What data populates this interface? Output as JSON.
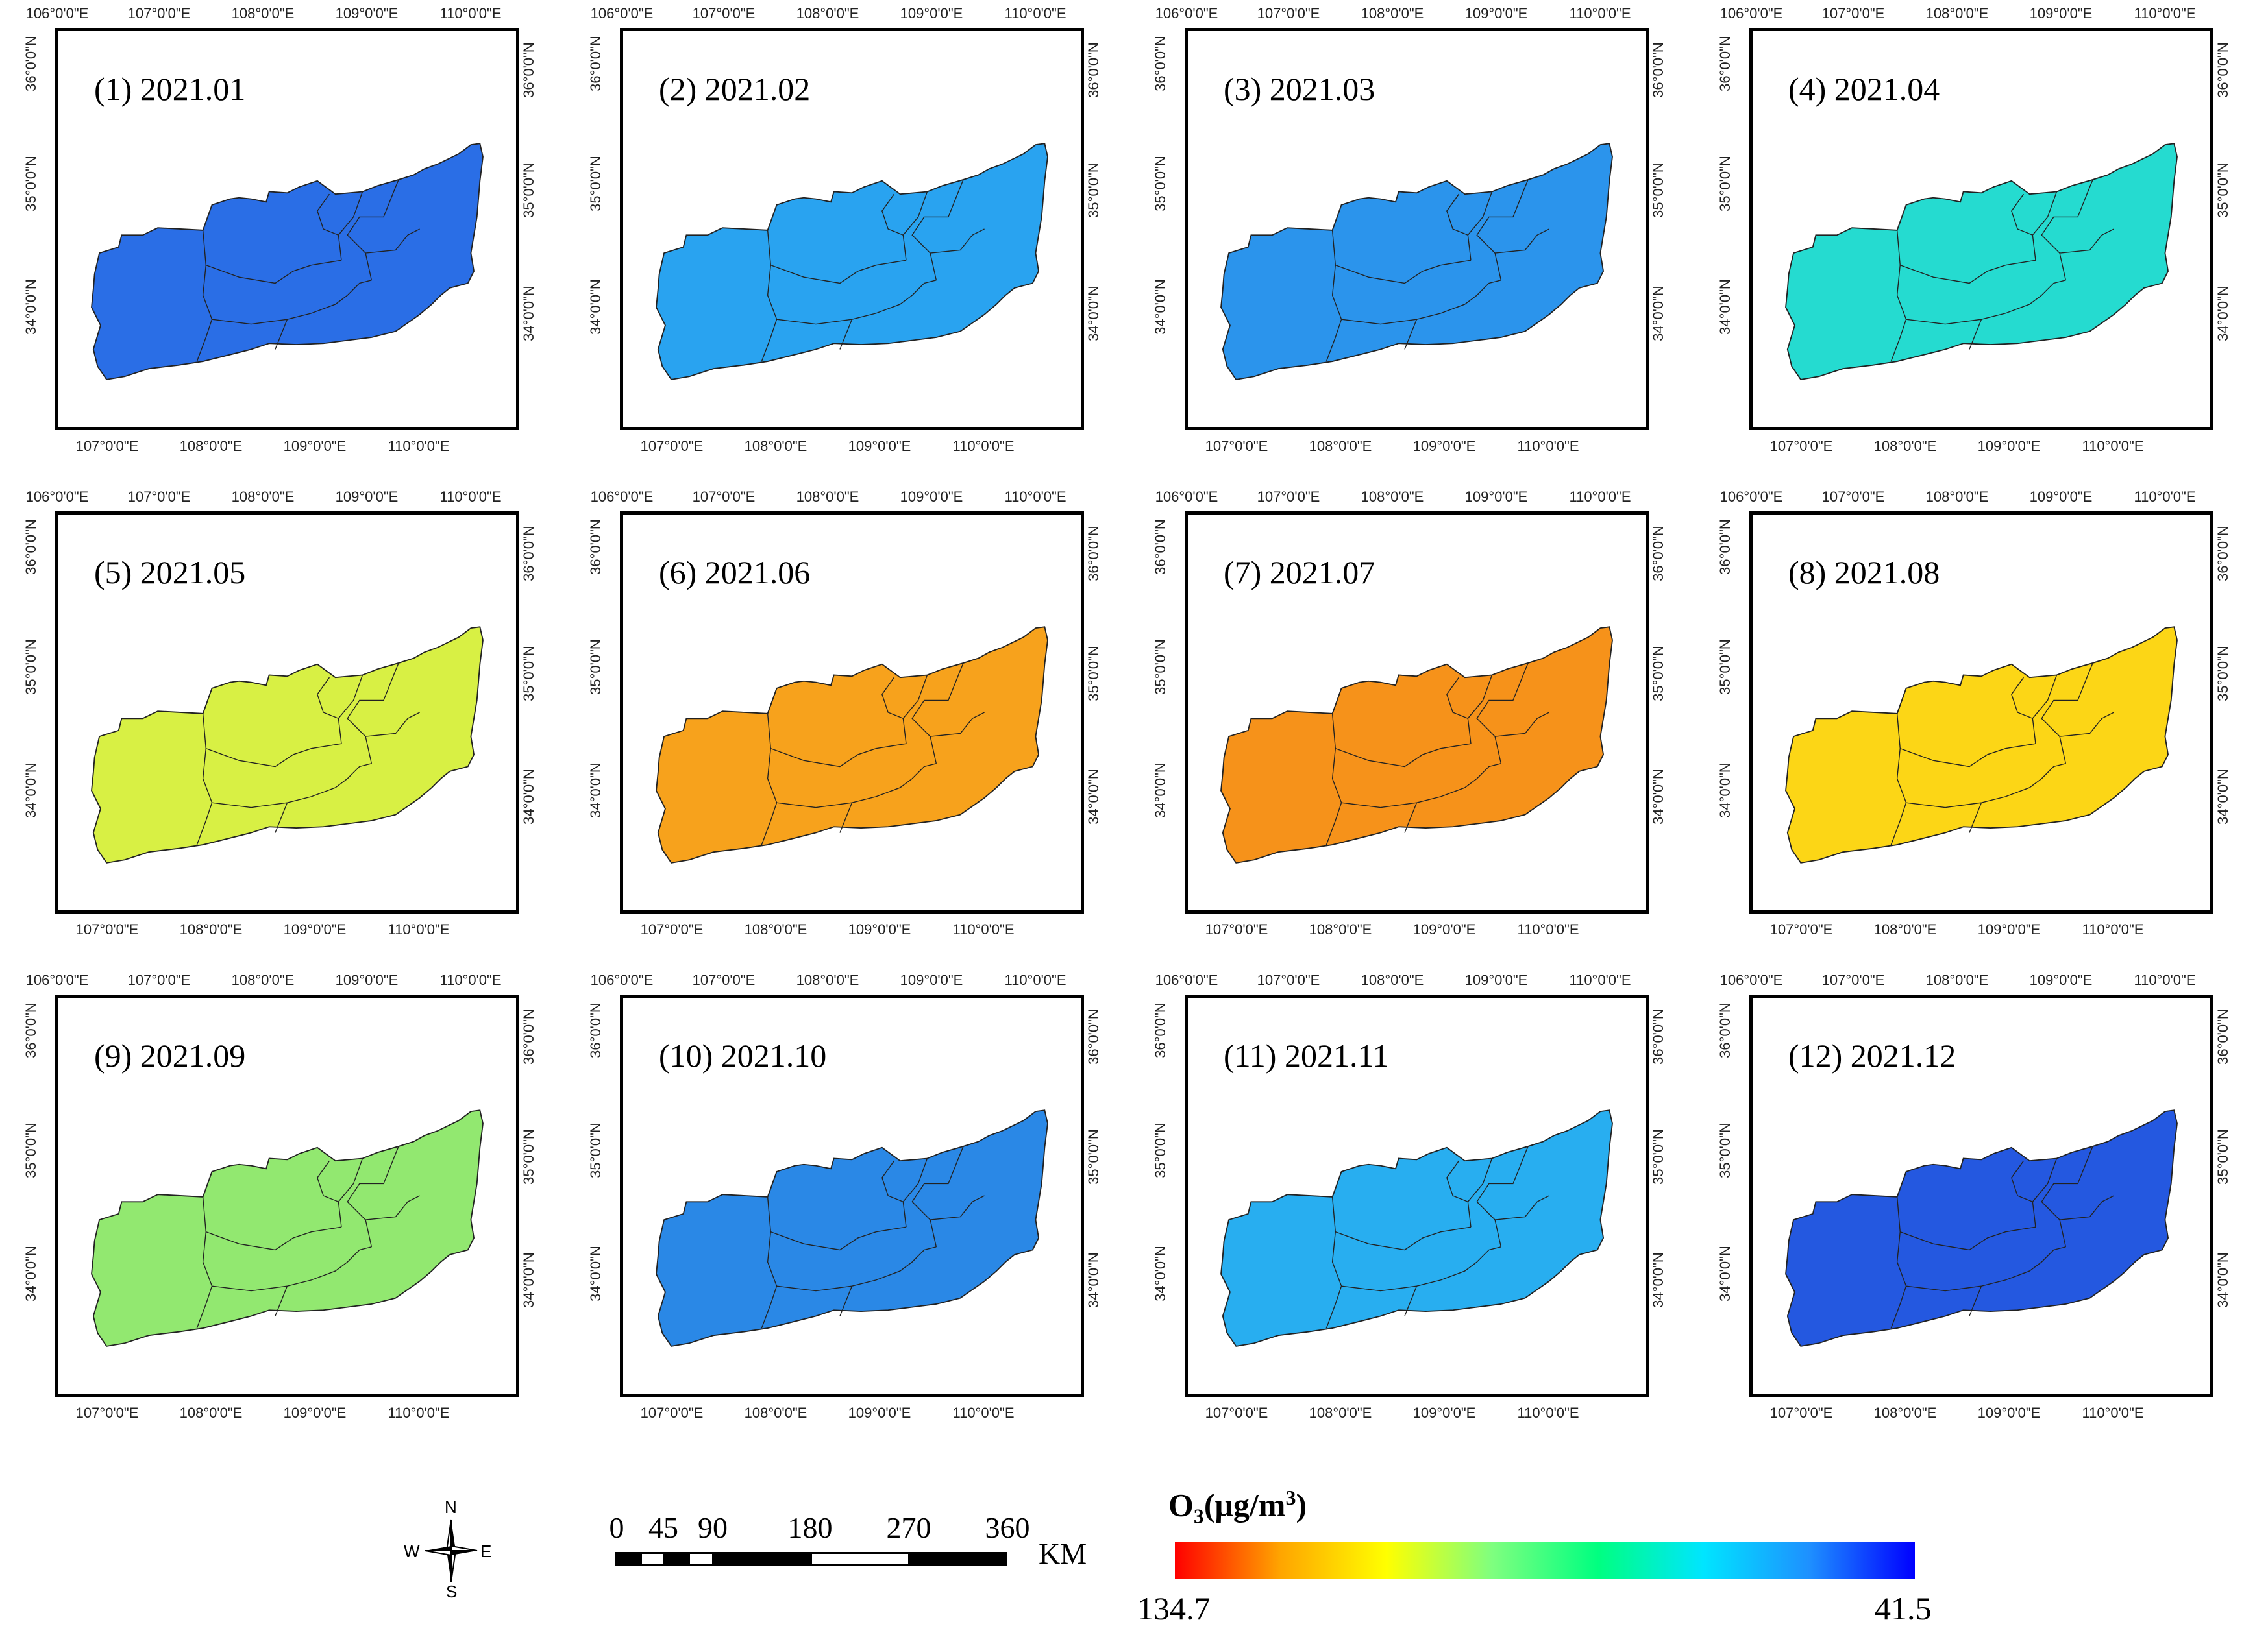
{
  "panels": [
    {
      "title": "(1) 2021.01",
      "fill": "#2a6ee6"
    },
    {
      "title": "(2) 2021.02",
      "fill": "#29a3f0"
    },
    {
      "title": "(3) 2021.03",
      "fill": "#2b94ec"
    },
    {
      "title": "(4) 2021.04",
      "fill": "#25dbd0"
    },
    {
      "title": "(5) 2021.05",
      "fill": "#d8f044"
    },
    {
      "title": "(6) 2021.06",
      "fill": "#f7a21c"
    },
    {
      "title": "(7) 2021.07",
      "fill": "#f6921a"
    },
    {
      "title": "(8) 2021.08",
      "fill": "#fcd616"
    },
    {
      "title": "(9) 2021.09",
      "fill": "#92e870"
    },
    {
      "title": "(10) 2021.10",
      "fill": "#2a88e6"
    },
    {
      "title": "(11) 2021.11",
      "fill": "#28aef0"
    },
    {
      "title": "(12) 2021.12",
      "fill": "#2458e0"
    }
  ],
  "lon_top_labels": [
    "106°0'0\"E",
    "107°0'0\"E",
    "108°0'0\"E",
    "109°0'0\"E",
    "110°0'0\"E"
  ],
  "lon_bottom_labels": [
    "107°0'0\"E",
    "108°0'0\"E",
    "109°0'0\"E",
    "110°0'0\"E"
  ],
  "lat_labels": [
    "36°0'0\"N",
    "35°0'0\"N",
    "34°0'0\"N"
  ],
  "compass": {
    "n": "N",
    "s": "S",
    "e": "E",
    "w": "W"
  },
  "scale_bar": {
    "ticks": [
      "0",
      "45",
      "90",
      "180",
      "270",
      "360"
    ],
    "unit": "KM"
  },
  "legend": {
    "title_prefix": "O",
    "title_sub": "3",
    "title_unit": "(μg/m",
    "title_sup": "3",
    "title_close": ")",
    "min_label": "134.7",
    "max_label": "41.5",
    "gradient_colors": [
      "#ff0000",
      "#ffa500",
      "#ffff00",
      "#7fff7f",
      "#00ff80",
      "#00e5ff",
      "#1e90ff",
      "#0000ff"
    ]
  }
}
